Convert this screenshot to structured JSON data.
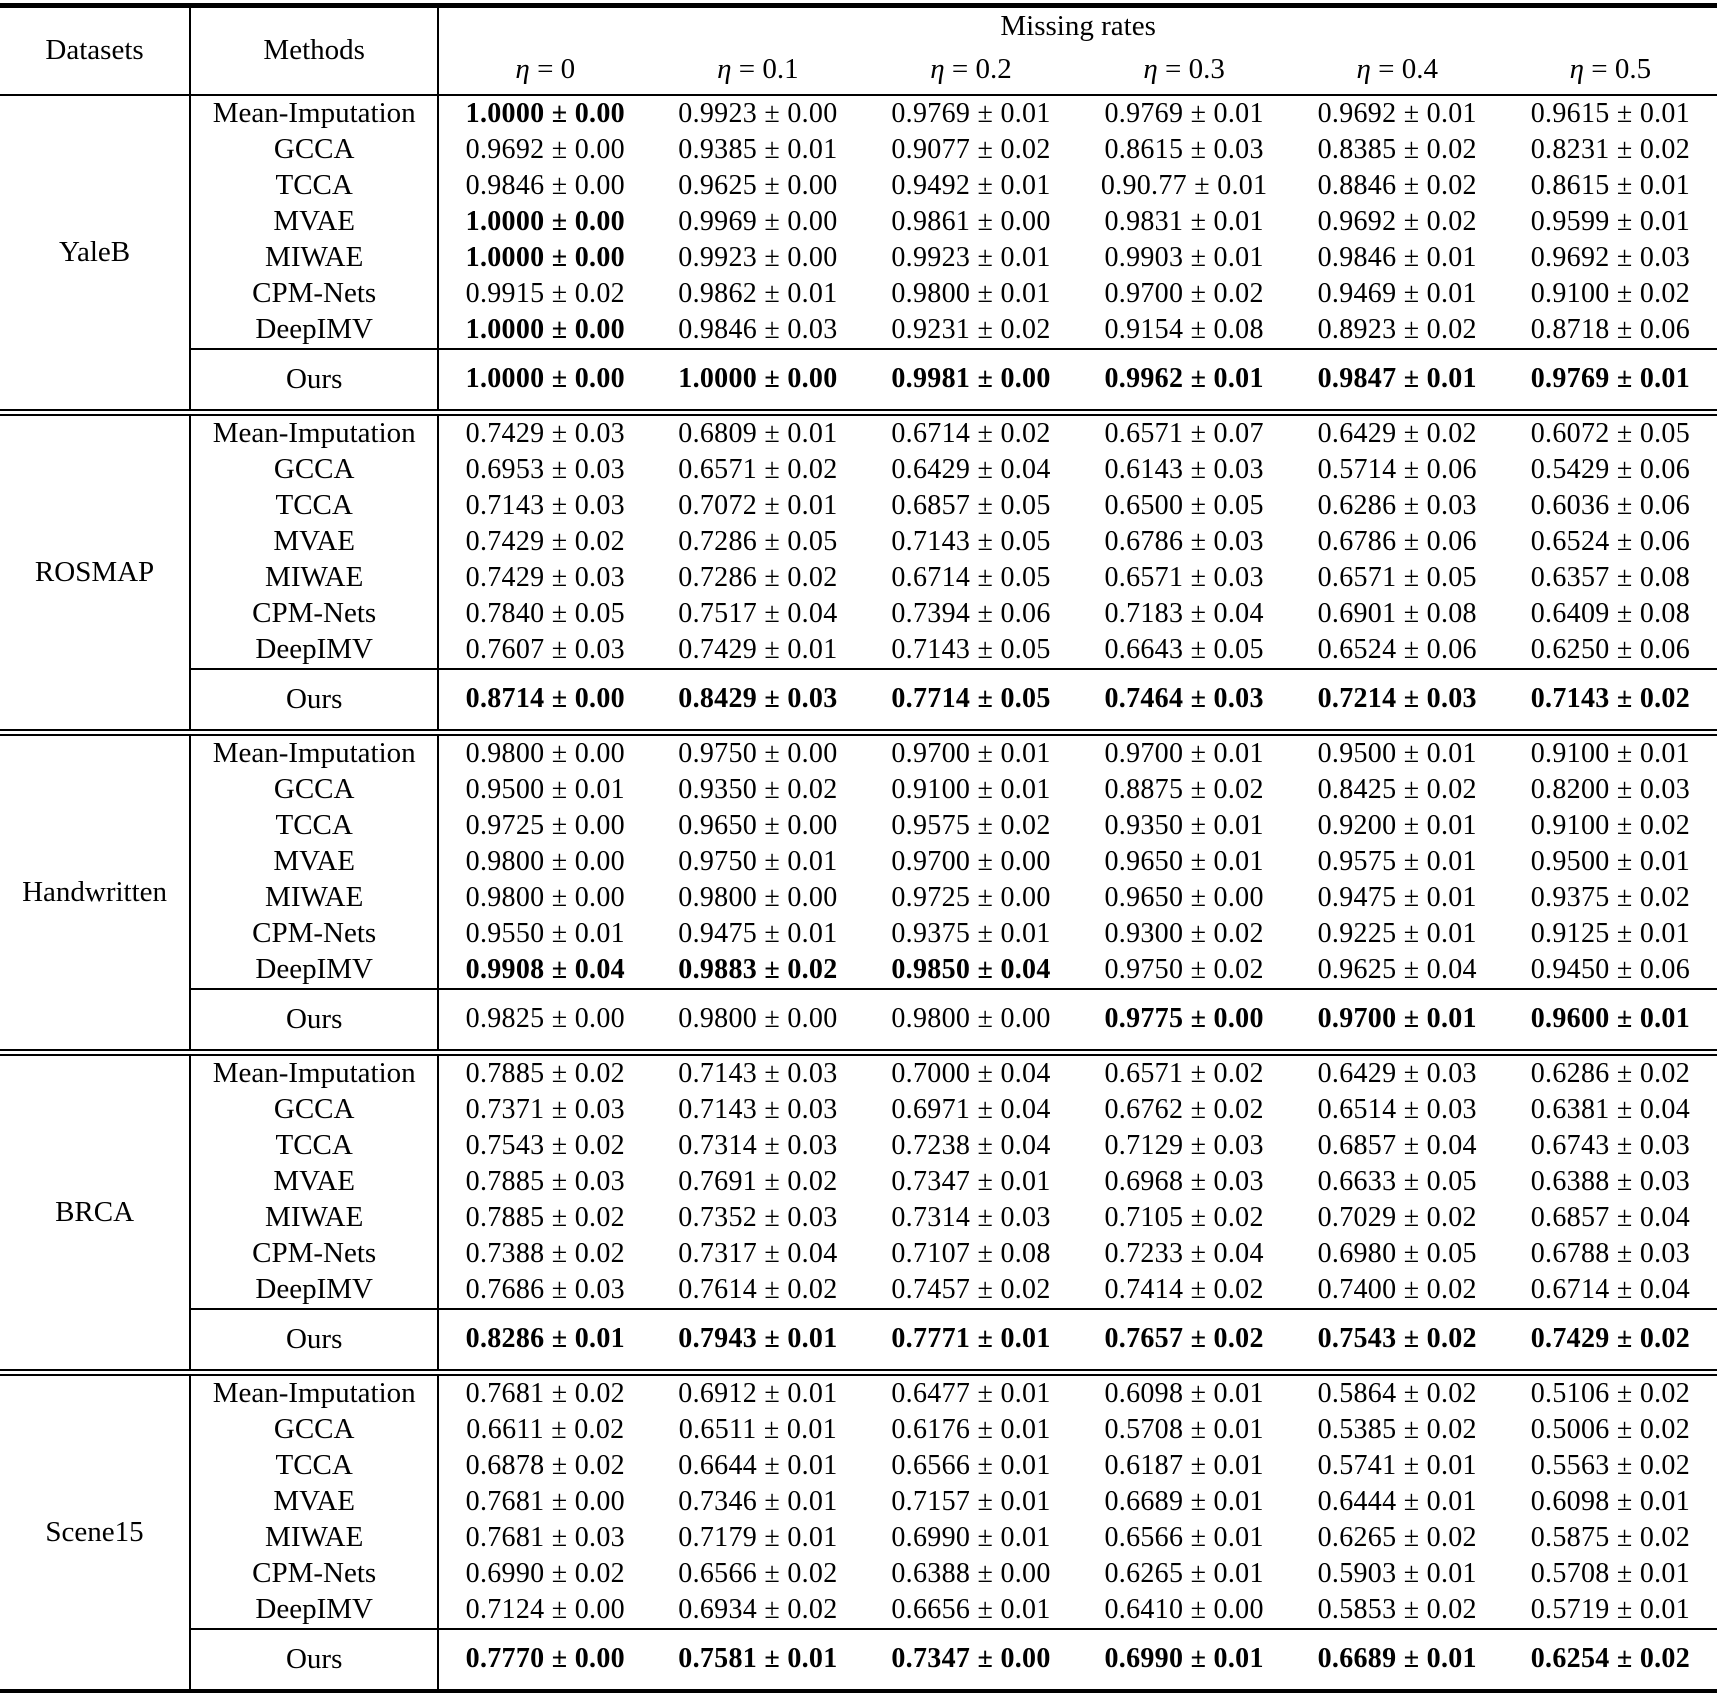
{
  "table": {
    "header": {
      "datasets": "Datasets",
      "methods": "Methods",
      "missing_rates": "Missing rates",
      "columns": [
        "η = 0",
        "η = 0.1",
        "η = 0.2",
        "η = 0.3",
        "η = 0.4",
        "η = 0.5"
      ]
    },
    "ours_label": "Ours",
    "sections": [
      {
        "dataset": "YaleB",
        "rows": [
          {
            "method": "Mean-Imputation",
            "values": [
              "1.0000 ± 0.00",
              "0.9923 ± 0.00",
              "0.9769 ± 0.01",
              "0.9769 ± 0.01",
              "0.9692 ± 0.01",
              "0.9615 ± 0.01"
            ],
            "bold": [
              1,
              0,
              0,
              0,
              0,
              0
            ]
          },
          {
            "method": "GCCA",
            "values": [
              "0.9692 ± 0.00",
              "0.9385 ± 0.01",
              "0.9077 ± 0.02",
              "0.8615 ± 0.03",
              "0.8385 ± 0.02",
              "0.8231 ± 0.02"
            ],
            "bold": [
              0,
              0,
              0,
              0,
              0,
              0
            ]
          },
          {
            "method": "TCCA",
            "values": [
              "0.9846 ± 0.00",
              "0.9625 ± 0.00",
              "0.9492 ± 0.01",
              "0.90.77 ± 0.01",
              "0.8846 ± 0.02",
              "0.8615 ± 0.01"
            ],
            "bold": [
              0,
              0,
              0,
              0,
              0,
              0
            ]
          },
          {
            "method": "MVAE",
            "values": [
              "1.0000 ± 0.00",
              "0.9969 ± 0.00",
              "0.9861 ± 0.00",
              "0.9831 ± 0.01",
              "0.9692 ± 0.02",
              "0.9599 ± 0.01"
            ],
            "bold": [
              1,
              0,
              0,
              0,
              0,
              0
            ]
          },
          {
            "method": "MIWAE",
            "values": [
              "1.0000 ± 0.00",
              "0.9923 ± 0.00",
              "0.9923 ± 0.01",
              "0.9903 ± 0.01",
              "0.9846 ± 0.01",
              "0.9692 ± 0.03"
            ],
            "bold": [
              1,
              0,
              0,
              0,
              0,
              0
            ]
          },
          {
            "method": "CPM-Nets",
            "values": [
              "0.9915 ± 0.02",
              "0.9862 ± 0.01",
              "0.9800 ± 0.01",
              "0.9700 ± 0.02",
              "0.9469 ± 0.01",
              "0.9100 ± 0.02"
            ],
            "bold": [
              0,
              0,
              0,
              0,
              0,
              0
            ]
          },
          {
            "method": "DeepIMV",
            "values": [
              "1.0000 ± 0.00",
              "0.9846 ± 0.03",
              "0.9231 ± 0.02",
              "0.9154 ± 0.08",
              "0.8923 ± 0.02",
              "0.8718 ± 0.06"
            ],
            "bold": [
              1,
              0,
              0,
              0,
              0,
              0
            ]
          }
        ],
        "ours": {
          "values": [
            "1.0000 ± 0.00",
            "1.0000 ± 0.00",
            "0.9981 ± 0.00",
            "0.9962 ± 0.01",
            "0.9847 ± 0.01",
            "0.9769 ± 0.01"
          ],
          "bold": [
            1,
            1,
            1,
            1,
            1,
            1
          ]
        }
      },
      {
        "dataset": "ROSMAP",
        "rows": [
          {
            "method": "Mean-Imputation",
            "values": [
              "0.7429 ± 0.03",
              "0.6809 ± 0.01",
              "0.6714 ± 0.02",
              "0.6571 ± 0.07",
              "0.6429 ± 0.02",
              "0.6072 ± 0.05"
            ],
            "bold": [
              0,
              0,
              0,
              0,
              0,
              0
            ]
          },
          {
            "method": "GCCA",
            "values": [
              "0.6953 ± 0.03",
              "0.6571 ± 0.02",
              "0.6429 ± 0.04",
              "0.6143 ± 0.03",
              "0.5714 ± 0.06",
              "0.5429 ± 0.06"
            ],
            "bold": [
              0,
              0,
              0,
              0,
              0,
              0
            ]
          },
          {
            "method": "TCCA",
            "values": [
              "0.7143 ± 0.03",
              "0.7072 ± 0.01",
              "0.6857 ± 0.05",
              "0.6500 ± 0.05",
              "0.6286 ± 0.03",
              "0.6036 ± 0.06"
            ],
            "bold": [
              0,
              0,
              0,
              0,
              0,
              0
            ]
          },
          {
            "method": "MVAE",
            "values": [
              "0.7429 ± 0.02",
              "0.7286 ± 0.05",
              "0.7143 ± 0.05",
              "0.6786 ± 0.03",
              "0.6786 ± 0.06",
              "0.6524 ± 0.06"
            ],
            "bold": [
              0,
              0,
              0,
              0,
              0,
              0
            ]
          },
          {
            "method": "MIWAE",
            "values": [
              "0.7429 ± 0.03",
              "0.7286 ± 0.02",
              "0.6714 ± 0.05",
              "0.6571 ± 0.03",
              "0.6571 ± 0.05",
              "0.6357 ± 0.08"
            ],
            "bold": [
              0,
              0,
              0,
              0,
              0,
              0
            ]
          },
          {
            "method": "CPM-Nets",
            "values": [
              "0.7840 ± 0.05",
              "0.7517 ± 0.04",
              "0.7394 ± 0.06",
              "0.7183 ± 0.04",
              "0.6901 ± 0.08",
              "0.6409 ± 0.08"
            ],
            "bold": [
              0,
              0,
              0,
              0,
              0,
              0
            ]
          },
          {
            "method": "DeepIMV",
            "values": [
              "0.7607 ± 0.03",
              "0.7429 ± 0.01",
              "0.7143 ± 0.05",
              "0.6643 ± 0.05",
              "0.6524 ± 0.06",
              "0.6250 ± 0.06"
            ],
            "bold": [
              0,
              0,
              0,
              0,
              0,
              0
            ]
          }
        ],
        "ours": {
          "values": [
            "0.8714 ± 0.00",
            "0.8429 ± 0.03",
            "0.7714 ± 0.05",
            "0.7464 ± 0.03",
            "0.7214 ± 0.03",
            "0.7143 ± 0.02"
          ],
          "bold": [
            1,
            1,
            1,
            1,
            1,
            1
          ]
        }
      },
      {
        "dataset": "Handwritten",
        "rows": [
          {
            "method": "Mean-Imputation",
            "values": [
              "0.9800 ± 0.00",
              "0.9750 ± 0.00",
              "0.9700 ± 0.01",
              "0.9700 ± 0.01",
              "0.9500 ± 0.01",
              "0.9100 ± 0.01"
            ],
            "bold": [
              0,
              0,
              0,
              0,
              0,
              0
            ]
          },
          {
            "method": "GCCA",
            "values": [
              "0.9500 ± 0.01",
              "0.9350 ± 0.02",
              "0.9100 ± 0.01",
              "0.8875 ± 0.02",
              "0.8425 ± 0.02",
              "0.8200 ± 0.03"
            ],
            "bold": [
              0,
              0,
              0,
              0,
              0,
              0
            ]
          },
          {
            "method": "TCCA",
            "values": [
              "0.9725 ± 0.00",
              "0.9650 ± 0.00",
              "0.9575 ± 0.02",
              "0.9350 ± 0.01",
              "0.9200 ± 0.01",
              "0.9100 ± 0.02"
            ],
            "bold": [
              0,
              0,
              0,
              0,
              0,
              0
            ]
          },
          {
            "method": "MVAE",
            "values": [
              "0.9800 ± 0.00",
              "0.9750 ± 0.01",
              "0.9700 ± 0.00",
              "0.9650 ± 0.01",
              "0.9575 ± 0.01",
              "0.9500 ± 0.01"
            ],
            "bold": [
              0,
              0,
              0,
              0,
              0,
              0
            ]
          },
          {
            "method": "MIWAE",
            "values": [
              "0.9800 ± 0.00",
              "0.9800 ± 0.00",
              "0.9725 ± 0.00",
              "0.9650 ± 0.00",
              "0.9475 ± 0.01",
              "0.9375 ± 0.02"
            ],
            "bold": [
              0,
              0,
              0,
              0,
              0,
              0
            ]
          },
          {
            "method": "CPM-Nets",
            "values": [
              "0.9550 ± 0.01",
              "0.9475 ± 0.01",
              "0.9375 ± 0.01",
              "0.9300 ± 0.02",
              "0.9225 ± 0.01",
              "0.9125 ± 0.01"
            ],
            "bold": [
              0,
              0,
              0,
              0,
              0,
              0
            ]
          },
          {
            "method": "DeepIMV",
            "values": [
              "0.9908 ± 0.04",
              "0.9883 ± 0.02",
              "0.9850 ± 0.04",
              "0.9750 ± 0.02",
              "0.9625 ± 0.04",
              "0.9450 ± 0.06"
            ],
            "bold": [
              1,
              1,
              1,
              0,
              0,
              0
            ]
          }
        ],
        "ours": {
          "values": [
            "0.9825 ± 0.00",
            "0.9800 ± 0.00",
            "0.9800 ± 0.00",
            "0.9775 ± 0.00",
            "0.9700 ± 0.01",
            "0.9600 ± 0.01"
          ],
          "bold": [
            0,
            0,
            0,
            1,
            1,
            1
          ]
        }
      },
      {
        "dataset": "BRCA",
        "rows": [
          {
            "method": "Mean-Imputation",
            "values": [
              "0.7885 ± 0.02",
              "0.7143 ± 0.03",
              "0.7000 ± 0.04",
              "0.6571 ± 0.02",
              "0.6429 ± 0.03",
              "0.6286 ± 0.02"
            ],
            "bold": [
              0,
              0,
              0,
              0,
              0,
              0
            ]
          },
          {
            "method": "GCCA",
            "values": [
              "0.7371 ± 0.03",
              "0.7143 ± 0.03",
              "0.6971 ± 0.04",
              "0.6762 ± 0.02",
              "0.6514 ± 0.03",
              "0.6381 ± 0.04"
            ],
            "bold": [
              0,
              0,
              0,
              0,
              0,
              0
            ]
          },
          {
            "method": "TCCA",
            "values": [
              "0.7543 ± 0.02",
              "0.7314 ± 0.03",
              "0.7238 ± 0.04",
              "0.7129 ± 0.03",
              "0.6857 ± 0.04",
              "0.6743 ± 0.03"
            ],
            "bold": [
              0,
              0,
              0,
              0,
              0,
              0
            ]
          },
          {
            "method": "MVAE",
            "values": [
              "0.7885 ± 0.03",
              "0.7691 ± 0.02",
              "0.7347 ± 0.01",
              "0.6968 ± 0.03",
              "0.6633 ± 0.05",
              "0.6388 ± 0.03"
            ],
            "bold": [
              0,
              0,
              0,
              0,
              0,
              0
            ]
          },
          {
            "method": "MIWAE",
            "values": [
              "0.7885 ± 0.02",
              "0.7352 ± 0.03",
              "0.7314 ± 0.03",
              "0.7105 ± 0.02",
              "0.7029 ± 0.02",
              "0.6857 ± 0.04"
            ],
            "bold": [
              0,
              0,
              0,
              0,
              0,
              0
            ]
          },
          {
            "method": "CPM-Nets",
            "values": [
              "0.7388 ± 0.02",
              "0.7317 ± 0.04",
              "0.7107 ± 0.08",
              "0.7233 ± 0.04",
              "0.6980 ± 0.05",
              "0.6788 ± 0.03"
            ],
            "bold": [
              0,
              0,
              0,
              0,
              0,
              0
            ]
          },
          {
            "method": "DeepIMV",
            "values": [
              "0.7686 ± 0.03",
              "0.7614 ± 0.02",
              "0.7457 ± 0.02",
              "0.7414 ± 0.02",
              "0.7400 ± 0.02",
              "0.6714 ± 0.04"
            ],
            "bold": [
              0,
              0,
              0,
              0,
              0,
              0
            ]
          }
        ],
        "ours": {
          "values": [
            "0.8286 ± 0.01",
            "0.7943 ± 0.01",
            "0.7771 ± 0.01",
            "0.7657 ± 0.02",
            "0.7543 ± 0.02",
            "0.7429 ± 0.02"
          ],
          "bold": [
            1,
            1,
            1,
            1,
            1,
            1
          ]
        }
      },
      {
        "dataset": "Scene15",
        "rows": [
          {
            "method": "Mean-Imputation",
            "values": [
              "0.7681 ± 0.02",
              "0.6912 ± 0.01",
              "0.6477 ± 0.01",
              "0.6098 ± 0.01",
              "0.5864 ± 0.02",
              "0.5106 ± 0.02"
            ],
            "bold": [
              0,
              0,
              0,
              0,
              0,
              0
            ]
          },
          {
            "method": "GCCA",
            "values": [
              "0.6611 ± 0.02",
              "0.6511 ± 0.01",
              "0.6176 ± 0.01",
              "0.5708 ± 0.01",
              "0.5385 ± 0.02",
              "0.5006 ± 0.02"
            ],
            "bold": [
              0,
              0,
              0,
              0,
              0,
              0
            ]
          },
          {
            "method": "TCCA",
            "values": [
              "0.6878 ± 0.02",
              "0.6644 ± 0.01",
              "0.6566 ± 0.01",
              "0.6187 ± 0.01",
              "0.5741 ± 0.01",
              "0.5563 ± 0.02"
            ],
            "bold": [
              0,
              0,
              0,
              0,
              0,
              0
            ]
          },
          {
            "method": "MVAE",
            "values": [
              "0.7681 ± 0.00",
              "0.7346 ± 0.01",
              "0.7157 ± 0.01",
              "0.6689 ± 0.01",
              "0.6444 ± 0.01",
              "0.6098 ± 0.01"
            ],
            "bold": [
              0,
              0,
              0,
              0,
              0,
              0
            ]
          },
          {
            "method": "MIWAE",
            "values": [
              "0.7681 ± 0.03",
              "0.7179 ± 0.01",
              "0.6990 ± 0.01",
              "0.6566 ± 0.01",
              "0.6265 ± 0.02",
              "0.5875 ± 0.02"
            ],
            "bold": [
              0,
              0,
              0,
              0,
              0,
              0
            ]
          },
          {
            "method": "CPM-Nets",
            "values": [
              "0.6990 ± 0.02",
              "0.6566 ± 0.02",
              "0.6388 ± 0.00",
              "0.6265 ± 0.01",
              "0.5903 ± 0.01",
              "0.5708 ± 0.01"
            ],
            "bold": [
              0,
              0,
              0,
              0,
              0,
              0
            ]
          },
          {
            "method": "DeepIMV",
            "values": [
              "0.7124 ± 0.00",
              "0.6934 ± 0.02",
              "0.6656 ± 0.01",
              "0.6410 ± 0.00",
              "0.5853 ± 0.02",
              "0.5719 ± 0.01"
            ],
            "bold": [
              0,
              0,
              0,
              0,
              0,
              0
            ]
          }
        ],
        "ours": {
          "values": [
            "0.7770 ± 0.00",
            "0.7581 ± 0.01",
            "0.7347 ± 0.00",
            "0.6990 ± 0.01",
            "0.6689 ± 0.01",
            "0.6254 ± 0.02"
          ],
          "bold": [
            1,
            1,
            1,
            1,
            1,
            1
          ]
        }
      }
    ]
  }
}
